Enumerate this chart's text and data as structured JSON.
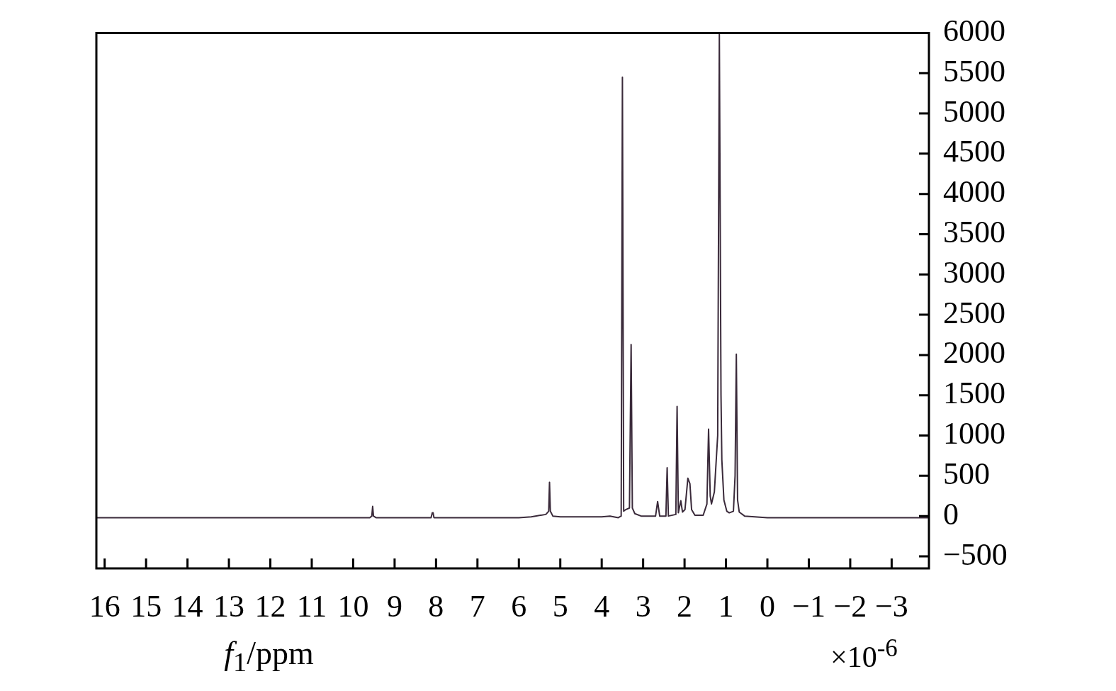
{
  "chart_data": {
    "type": "line",
    "xlabel": "f$_{1}$/ppm",
    "annotations": [
      "×10$^{-6}$"
    ],
    "color": "#3a2a3a",
    "marker": "none",
    "grid": false,
    "legend": false,
    "x": [
      16.2,
      9.6,
      9.55,
      9.53,
      9.51,
      9.45,
      8.12,
      8.09,
      8.07,
      8.05,
      6.0,
      5.7,
      5.6,
      5.35,
      5.28,
      5.26,
      5.24,
      5.18,
      5.0,
      4.0,
      3.8,
      3.6,
      3.53,
      3.5,
      3.47,
      3.42,
      3.33,
      3.29,
      3.26,
      3.2,
      3.05,
      2.7,
      2.65,
      2.6,
      2.45,
      2.42,
      2.39,
      2.21,
      2.18,
      2.15,
      2.09,
      2.05,
      1.99,
      1.92,
      1.87,
      1.83,
      1.75,
      1.55,
      1.46,
      1.42,
      1.38,
      1.35,
      1.28,
      1.2,
      1.16,
      1.12,
      1.1,
      1.05,
      0.98,
      0.92,
      0.82,
      0.78,
      0.75,
      0.72,
      0.68,
      0.55,
      0.0,
      -3.9
    ],
    "values": [
      -20,
      -20,
      0,
      120,
      0,
      -20,
      -20,
      40,
      40,
      -20,
      -20,
      -10,
      0,
      20,
      60,
      420,
      60,
      0,
      -10,
      -10,
      0,
      -20,
      0,
      5450,
      60,
      80,
      100,
      2130,
      100,
      30,
      0,
      0,
      180,
      0,
      0,
      600,
      0,
      20,
      1360,
      40,
      190,
      50,
      80,
      470,
      400,
      80,
      10,
      10,
      150,
      1080,
      250,
      150,
      300,
      1000,
      6000,
      1500,
      700,
      200,
      60,
      40,
      60,
      500,
      2010,
      200,
      50,
      0,
      -20,
      -20
    ],
    "xlim": [
      16.2,
      -3.9
    ],
    "xticks": [
      16,
      15,
      14,
      13,
      12,
      11,
      10,
      9,
      8,
      7,
      6,
      5,
      4,
      3,
      2,
      1,
      0,
      {
        "value": -1,
        "label": "−1"
      },
      {
        "value": -2,
        "label": "−2"
      },
      {
        "value": -3,
        "label": "−3"
      }
    ],
    "ylim": [
      -650,
      6000
    ],
    "yticks": [
      {
        "value": -500,
        "label": "−500"
      },
      0,
      500,
      1000,
      1500,
      2000,
      2500,
      3000,
      3500,
      4000,
      4500,
      5000,
      5500,
      6000
    ]
  }
}
